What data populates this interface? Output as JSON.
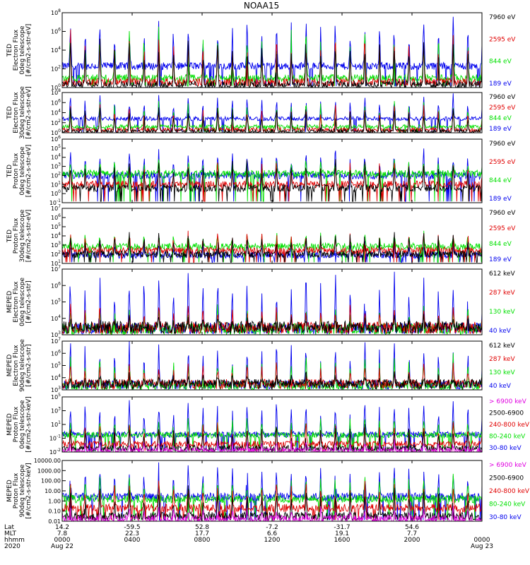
{
  "chart_data": {
    "type": "line",
    "title": "NOAA15",
    "x_range_hours": [
      0,
      24
    ],
    "panels": [
      {
        "ylabel": [
          "TED",
          "Electron Flux",
          "0deg telescope",
          "[#/cm2-s-str-eV]"
        ],
        "ytick_labels": [
          "10^0",
          "10^2",
          "10^4",
          "10^6",
          "10^8"
        ],
        "ylim_exp": [
          0,
          8
        ],
        "series": [
          {
            "name": "7960 eV",
            "color": "#000000",
            "base": 0.3,
            "peak": 5.2
          },
          {
            "name": "2595 eV",
            "color": "#e00000",
            "base": 0.6,
            "peak": 5.6
          },
          {
            "name": "844 eV",
            "color": "#00e000",
            "base": 1.0,
            "peak": 6.2
          },
          {
            "name": "189 eV",
            "color": "#0000ee",
            "base": 2.3,
            "peak": 7.5
          }
        ]
      },
      {
        "ylabel": [
          "TED",
          "Electron Flux",
          "30deg telescope",
          "[#/cm2-s-str-eV]"
        ],
        "ytick_labels": [
          "10^0",
          "10^2",
          "10^4",
          "10^6",
          "10^8"
        ],
        "ylim_exp": [
          0,
          8
        ],
        "series": [
          {
            "name": "7960 eV",
            "color": "#000000",
            "base": 0.3,
            "peak": 5.0
          },
          {
            "name": "2595 eV",
            "color": "#e00000",
            "base": 0.6,
            "peak": 5.4
          },
          {
            "name": "844 eV",
            "color": "#00e000",
            "base": 1.2,
            "peak": 6.0
          },
          {
            "name": "189 eV",
            "color": "#0000ee",
            "base": 2.8,
            "peak": 7.2
          }
        ]
      },
      {
        "ylabel": [
          "TED",
          "Proton Flux",
          "0deg telescope",
          "[#/cm2-s-str-eV]"
        ],
        "ytick_labels": [
          "10^-1",
          "10^0",
          "10^1",
          "10^2",
          "10^3",
          "10^4",
          "10^5",
          "10^6"
        ],
        "ylim_exp": [
          -1,
          6
        ],
        "series": [
          {
            "name": "7960 eV",
            "color": "#000000",
            "base": 0.6,
            "peak": 3.8
          },
          {
            "name": "2595 eV",
            "color": "#e00000",
            "base": 1.0,
            "peak": 3.4
          },
          {
            "name": "844 eV",
            "color": "#00e000",
            "base": 2.2,
            "peak": 3.6
          },
          {
            "name": "189 eV",
            "color": "#0000ee",
            "base": 2.0,
            "peak": 4.6
          }
        ]
      },
      {
        "ylabel": [
          "TED",
          "Proton Flux",
          "30deg telescope",
          "[#/cm2-s-str-eV]"
        ],
        "ytick_labels": [
          "10^1",
          "10^2",
          "10^3",
          "10^4",
          "10^5",
          "10^6",
          "10^7"
        ],
        "ylim_exp": [
          0.5,
          7
        ],
        "series": [
          {
            "name": "7960 eV",
            "color": "#000000",
            "base": 1.6,
            "peak": 4.0
          },
          {
            "name": "2595 eV",
            "color": "#e00000",
            "base": 2.0,
            "peak": 4.2
          },
          {
            "name": "844 eV",
            "color": "#00e000",
            "base": 2.5,
            "peak": 4.0
          },
          {
            "name": "189 eV",
            "color": "#0000ee",
            "base": 1.5,
            "peak": 3.0
          }
        ]
      },
      {
        "ylabel": [
          "MEPED",
          "Electron Flux",
          "0deg telescope",
          "[#/cm2-s-str]"
        ],
        "ytick_labels": [
          "10^3",
          "10^4",
          "10^5",
          "10^6",
          "10^7"
        ],
        "ylim_exp": [
          2.6,
          7.2
        ],
        "series": [
          {
            "name": "612 keV",
            "color": "#000000",
            "base": 3.15,
            "peak": 3.7
          },
          {
            "name": "287 keV",
            "color": "#e00000",
            "base": 3.1,
            "peak": 4.6
          },
          {
            "name": "130 keV",
            "color": "#00e000",
            "base": 3.0,
            "peak": 4.4
          },
          {
            "name": "40 keV",
            "color": "#0000ee",
            "base": 3.05,
            "peak": 6.8
          }
        ]
      },
      {
        "ylabel": [
          "MEPED",
          "Electron Flux",
          "90deg telescope",
          "[#/cm2-s-str]"
        ],
        "ytick_labels": [
          "10^3",
          "10^4",
          "10^5",
          "10^6",
          "10^7"
        ],
        "ylim_exp": [
          2.6,
          7.2
        ],
        "series": [
          {
            "name": "612 keV",
            "color": "#000000",
            "base": 3.2,
            "peak": 4.0
          },
          {
            "name": "287 keV",
            "color": "#e00000",
            "base": 3.2,
            "peak": 5.0
          },
          {
            "name": "130 keV",
            "color": "#00e000",
            "base": 3.0,
            "peak": 5.6
          },
          {
            "name": "40 keV",
            "color": "#0000ee",
            "base": 3.1,
            "peak": 6.9
          }
        ]
      },
      {
        "ylabel": [
          "MEPED",
          "Proton Flux",
          "0deg telescope",
          "[#/cm2-s-str-keV]"
        ],
        "ytick_labels": [
          "10^-2",
          "10^-1",
          "10^1",
          "10^3",
          "10^5"
        ],
        "ylim_exp": [
          -2,
          5.5
        ],
        "series": [
          {
            "name": "> 6900 keV",
            "color": "#e000e0",
            "base": -1.8,
            "peak": -0.6
          },
          {
            "name": "2500-6900",
            "color": "#000000",
            "base": -1.5,
            "peak": 1.5
          },
          {
            "name": "240-800 keV",
            "color": "#e00000",
            "base": -0.9,
            "peak": 2.0
          },
          {
            "name": "80-240 keV",
            "color": "#00e000",
            "base": 0.3,
            "peak": 2.5
          },
          {
            "name": "30-80 keV",
            "color": "#0000ee",
            "base": 0.4,
            "peak": 4.8
          }
        ]
      },
      {
        "ylabel": [
          "MEPED",
          "Proton Flux",
          "90deg telescope",
          "[#/cm2-s-str-keV]"
        ],
        "ytick_labels": [
          "0.01",
          "0.10",
          "1.00",
          "10.00",
          "100.00",
          "1000.00",
          "10000.00"
        ],
        "ylim_exp": [
          -2,
          4
        ],
        "series": [
          {
            "name": "> 6900 keV",
            "color": "#e000e0",
            "base": -1.8,
            "peak": -0.7
          },
          {
            "name": "2500-6900",
            "color": "#000000",
            "base": -1.5,
            "peak": 1.2
          },
          {
            "name": "240-800 keV",
            "color": "#e00000",
            "base": -0.7,
            "peak": 1.8
          },
          {
            "name": "80-240 keV",
            "color": "#00e000",
            "base": 0.2,
            "peak": 2.2
          },
          {
            "name": "30-80 keV",
            "color": "#0000ee",
            "base": 0.4,
            "peak": 3.6
          }
        ]
      }
    ],
    "x_axis": {
      "row_labels": [
        "Lat",
        "MLT",
        "hhmm",
        "2020"
      ],
      "columns": [
        {
          "hour": 0,
          "lat": "14.2",
          "mlt": "7.8",
          "hhmm": "0000",
          "date": "Aug 22"
        },
        {
          "hour": 4,
          "lat": "-59.5",
          "mlt": "22.3",
          "hhmm": "0400",
          "date": ""
        },
        {
          "hour": 8,
          "lat": "52.8",
          "mlt": "17.7",
          "hhmm": "0800",
          "date": ""
        },
        {
          "hour": 12,
          "lat": "-7.2",
          "mlt": "6.6",
          "hhmm": "1200",
          "date": ""
        },
        {
          "hour": 16,
          "lat": "-31.7",
          "mlt": "19.1",
          "hhmm": "1600",
          "date": ""
        },
        {
          "hour": 20,
          "lat": "54.6",
          "mlt": "7.7",
          "hhmm": "2000",
          "date": ""
        },
        {
          "hour": 24,
          "lat": "",
          "mlt": "",
          "hhmm": "0000",
          "date": "Aug 23"
        }
      ]
    }
  }
}
